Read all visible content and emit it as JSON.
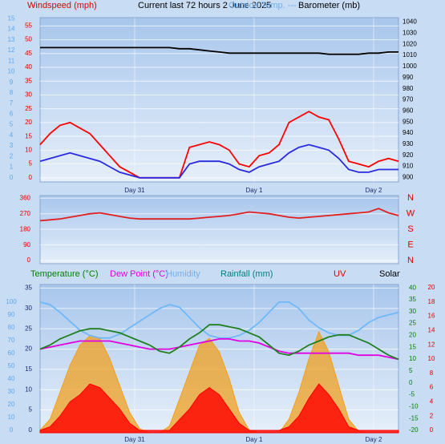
{
  "chart_data": [
    {
      "type": "line",
      "headers": [
        {
          "text": "Windspeed (mph)",
          "color": "#e00000"
        },
        {
          "text": "Current last 72 hours 2 June 2025",
          "color": "#000000"
        },
        {
          "text": "Outside Temp. ---",
          "color": "#6fb0f0"
        },
        {
          "text": "Barometer (mb)",
          "color": "#000000"
        }
      ],
      "x": [
        0,
        2,
        4,
        6,
        8,
        10,
        12,
        14,
        16,
        18,
        20,
        22,
        24,
        26,
        28,
        30,
        32,
        34,
        36,
        38,
        40,
        42,
        44,
        46,
        48,
        50,
        52,
        54,
        56,
        58,
        60,
        62,
        64,
        66,
        68,
        70,
        72
      ],
      "xlim": [
        0,
        72
      ],
      "xticks": [
        {
          "value": 19,
          "label": "Day 31"
        },
        {
          "value": 43,
          "label": "Day 1"
        },
        {
          "value": 67,
          "label": "Day 2"
        }
      ],
      "grid": "wind",
      "axes": {
        "rain": {
          "ylim": [
            -0.4,
            15.1
          ],
          "color": "#5aa8f0",
          "ticks": [
            0,
            1,
            2,
            3,
            4,
            5,
            6,
            7,
            8,
            9,
            10,
            11,
            12,
            13,
            14,
            15
          ]
        },
        "wind": {
          "ylim": [
            -1.5,
            58
          ],
          "color": "#e00000",
          "ticks": [
            0,
            5,
            10,
            15,
            20,
            25,
            30,
            35,
            40,
            45,
            50,
            55
          ]
        },
        "baro": {
          "ylim": [
            896,
            1044
          ],
          "color": "#000000",
          "ticks": [
            900,
            910,
            920,
            930,
            940,
            950,
            960,
            970,
            980,
            990,
            1000,
            1010,
            1020,
            1030,
            1040
          ]
        }
      },
      "series": [
        {
          "color": "#ff0000",
          "axis": "wind",
          "values": [
            12,
            16,
            19,
            20,
            18,
            16,
            12,
            8,
            4,
            2,
            0,
            0,
            0,
            0,
            0,
            11,
            12,
            13,
            12,
            10,
            5,
            4,
            8,
            9,
            12,
            20,
            22,
            24,
            22,
            21,
            14,
            6,
            5,
            4,
            6,
            7,
            6
          ]
        },
        {
          "color": "#2a2ae0",
          "axis": "wind",
          "values": [
            6,
            7,
            8,
            9,
            8,
            7,
            6,
            4,
            2,
            1,
            0,
            0,
            0,
            0,
            0,
            5,
            6,
            6,
            6,
            5,
            3,
            2,
            4,
            5,
            6,
            9,
            11,
            12,
            11,
            10,
            7,
            3,
            2,
            2,
            3,
            3,
            3
          ]
        },
        {
          "color": "#000000",
          "axis": "baro",
          "values": [
            1017,
            1017,
            1017,
            1017,
            1017,
            1017,
            1017,
            1017,
            1017,
            1017,
            1017,
            1017,
            1017,
            1017,
            1016,
            1016,
            1015,
            1014,
            1013,
            1012,
            1012,
            1012,
            1012,
            1012,
            1012,
            1012,
            1012,
            1012,
            1012,
            1011,
            1011,
            1011,
            1011,
            1012,
            1012,
            1013,
            1013
          ]
        }
      ]
    },
    {
      "type": "line",
      "x": [
        0,
        2,
        4,
        6,
        8,
        10,
        12,
        14,
        16,
        18,
        20,
        22,
        24,
        26,
        28,
        30,
        32,
        34,
        36,
        38,
        40,
        42,
        44,
        46,
        48,
        50,
        52,
        54,
        56,
        58,
        60,
        62,
        64,
        66,
        68,
        70,
        72
      ],
      "xlim": [
        0,
        72
      ],
      "grid": "dir",
      "axes": {
        "dir": {
          "ylim": [
            -18,
            375
          ],
          "color": "#e00000",
          "ticks": [
            0,
            90,
            180,
            270,
            360
          ]
        },
        "compass": {
          "ylim": [
            -18,
            375
          ],
          "color": "#e00000",
          "ticks": [
            {
              "value": 0,
              "label": "N"
            },
            {
              "value": 90,
              "label": "E"
            },
            {
              "value": 180,
              "label": "S"
            },
            {
              "value": 270,
              "label": "W"
            },
            {
              "value": 360,
              "label": "N"
            }
          ]
        }
      },
      "series": [
        {
          "color": "#e02020",
          "axis": "dir",
          "values": [
            230,
            235,
            240,
            250,
            260,
            270,
            275,
            265,
            255,
            245,
            240,
            240,
            240,
            240,
            240,
            240,
            245,
            250,
            255,
            260,
            270,
            280,
            275,
            270,
            260,
            250,
            245,
            250,
            255,
            260,
            265,
            270,
            275,
            280,
            300,
            275,
            260
          ]
        }
      ]
    },
    {
      "type": "line",
      "headers": [
        {
          "text": "Temperature (°C)",
          "color": "#008000"
        },
        {
          "text": "Dew Point (°C)",
          "color": "#e000e0"
        },
        {
          "text": "Humidity",
          "color": "#6fb0f0"
        },
        {
          "text": "Rainfall (mm)",
          "color": "#008080"
        },
        {
          "text": "UV",
          "color": "#e00000"
        },
        {
          "text": "Solar",
          "color": "#000000"
        }
      ],
      "x": [
        0,
        2,
        4,
        6,
        8,
        10,
        12,
        14,
        16,
        18,
        20,
        22,
        24,
        26,
        28,
        30,
        32,
        34,
        36,
        38,
        40,
        42,
        44,
        46,
        48,
        50,
        52,
        54,
        56,
        58,
        60,
        62,
        64,
        66,
        68,
        70,
        72
      ],
      "xlim": [
        0,
        72
      ],
      "xticks": [
        {
          "value": 19,
          "label": "Day 31"
        },
        {
          "value": 43,
          "label": "Day 1"
        },
        {
          "value": 67,
          "label": "Day 2"
        }
      ],
      "grid": "temp",
      "solar_lim": [
        0,
        1100
      ],
      "axes": {
        "hum": {
          "ylim": [
            -1.9,
            113.7
          ],
          "color": "#5aa8f0",
          "ticks": [
            0,
            10,
            20,
            30,
            40,
            50,
            60,
            70,
            80,
            90,
            100
          ]
        },
        "temp": {
          "ylim": [
            -0.6,
            35.9
          ],
          "color": "#1a2a70",
          "ticks": [
            0,
            5,
            10,
            15,
            20,
            25,
            30,
            35
          ]
        },
        "temp2": {
          "ylim": [
            -21,
            41.4
          ],
          "color": "#008000",
          "ticks": [
            -20,
            -15,
            -10,
            -5,
            0,
            5,
            10,
            15,
            20,
            25,
            30,
            35,
            40
          ]
        },
        "uv": {
          "ylim": [
            -0.34,
            20.45
          ],
          "color": "#e00000",
          "ticks": [
            0,
            2,
            4,
            6,
            8,
            10,
            12,
            14,
            16,
            18,
            20
          ]
        }
      },
      "series": [
        {
          "color": "#f0a020",
          "axis": "solar",
          "values": [
            20,
            100,
            300,
            500,
            650,
            720,
            700,
            550,
            350,
            150,
            30,
            0,
            0,
            50,
            250,
            450,
            650,
            700,
            600,
            400,
            150,
            20,
            0,
            0,
            0,
            100,
            300,
            550,
            750,
            600,
            350,
            100,
            10,
            0,
            0,
            0,
            0
          ]
        },
        {
          "color": "#ff0000",
          "axis": "uv",
          "values": [
            0,
            0.5,
            2,
            4,
            5,
            6.5,
            6,
            4.5,
            3,
            1,
            0,
            0,
            0,
            0,
            1.5,
            3,
            5,
            6,
            5,
            3,
            1,
            0,
            0,
            0,
            0,
            0.5,
            2,
            4.5,
            6.5,
            5,
            3,
            0.5,
            0,
            0,
            0,
            0,
            0
          ]
        },
        {
          "color": "#70b8f8",
          "axis": "hum",
          "values": [
            100,
            98,
            92,
            85,
            78,
            74,
            72,
            72,
            75,
            80,
            85,
            90,
            95,
            98,
            96,
            88,
            80,
            74,
            72,
            72,
            74,
            78,
            84,
            92,
            100,
            100,
            95,
            86,
            80,
            76,
            74,
            74,
            78,
            84,
            88,
            90,
            92
          ]
        },
        {
          "color": "#e000e0",
          "axis": "temp",
          "values": [
            20,
            20.5,
            21,
            21.5,
            22,
            22,
            22,
            22,
            21.5,
            21,
            20.5,
            20,
            20,
            20,
            20.5,
            21,
            21.5,
            22,
            22.5,
            22.5,
            22,
            22,
            21.5,
            20.5,
            19.5,
            19,
            19,
            19,
            19,
            19,
            19,
            19,
            18.5,
            18.5,
            18.5,
            18,
            17.5
          ]
        },
        {
          "color": "#208020",
          "axis": "temp",
          "values": [
            20,
            21,
            22.5,
            23.5,
            24.5,
            25,
            25,
            24.5,
            24,
            23,
            22,
            21,
            19.5,
            19,
            20.5,
            22.5,
            24,
            26,
            26,
            25.5,
            25,
            24,
            23,
            21,
            19,
            18.5,
            19.5,
            21,
            22,
            23,
            23.5,
            23.5,
            22.5,
            21.5,
            20,
            18.5,
            17.5
          ]
        }
      ]
    }
  ]
}
